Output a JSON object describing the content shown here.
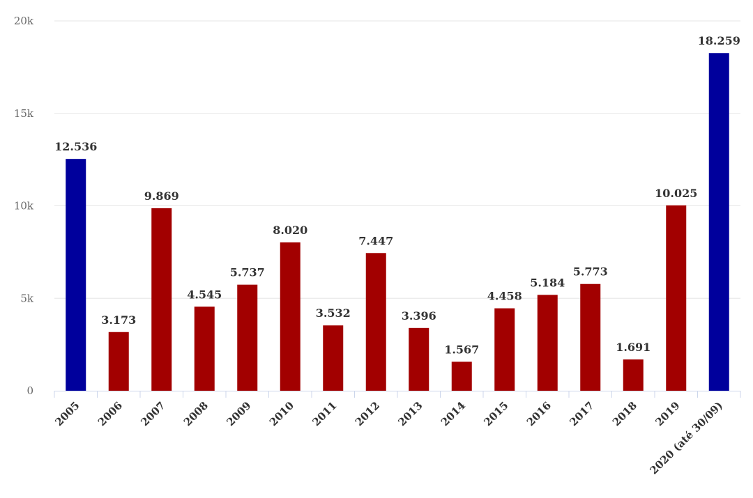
{
  "chart_data": {
    "type": "bar",
    "title": "",
    "xlabel": "",
    "ylabel": "",
    "ylim": [
      0,
      20000
    ],
    "yticks": [
      0,
      5000,
      10000,
      15000,
      20000
    ],
    "ytick_labels": [
      "0",
      "5k",
      "10k",
      "15k",
      "20k"
    ],
    "grid": true,
    "categories": [
      "2005",
      "2006",
      "2007",
      "2008",
      "2009",
      "2010",
      "2011",
      "2012",
      "2013",
      "2014",
      "2015",
      "2016",
      "2017",
      "2018",
      "2019",
      "2020 (até 30/09)"
    ],
    "values": [
      12536,
      3173,
      9869,
      4545,
      5737,
      8020,
      3532,
      7447,
      3396,
      1567,
      4458,
      5184,
      5773,
      1691,
      10025,
      18259
    ],
    "data_labels": [
      "12.536",
      "3.173",
      "9.869",
      "4.545",
      "5.737",
      "8.020",
      "3.532",
      "7.447",
      "3.396",
      "1.567",
      "4.458",
      "5.184",
      "5.773",
      "1.691",
      "10.025",
      "18.259"
    ],
    "bar_colors": [
      "#00009C",
      "#A20000",
      "#A20000",
      "#A20000",
      "#A20000",
      "#A20000",
      "#A20000",
      "#A20000",
      "#A20000",
      "#A20000",
      "#A20000",
      "#A20000",
      "#A20000",
      "#A20000",
      "#A20000",
      "#00009C"
    ],
    "colors": {
      "grid": "#e6e6e6",
      "axis": "#ccd6eb",
      "tick_text": "#666666",
      "label_text": "#333333"
    }
  }
}
